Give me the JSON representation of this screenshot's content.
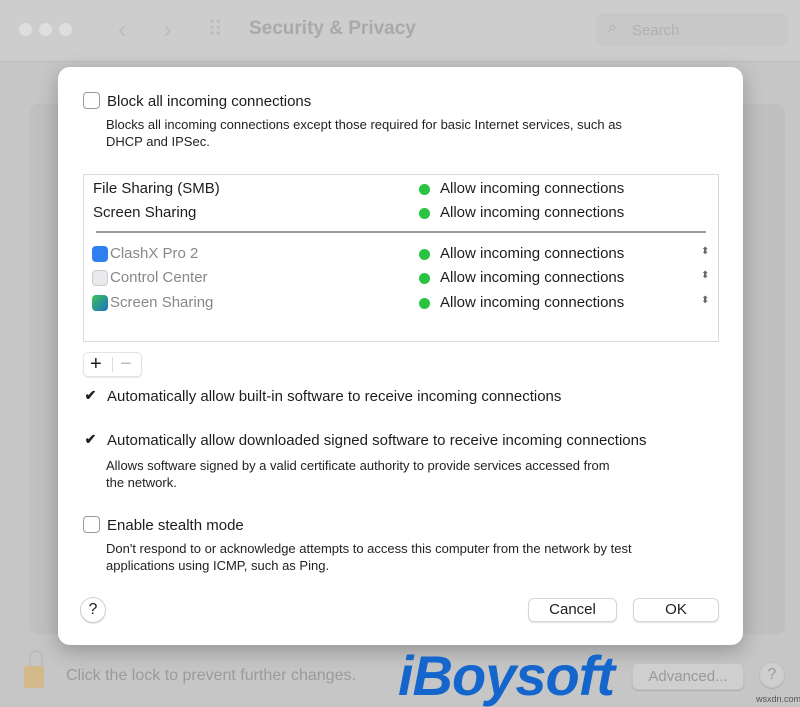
{
  "window": {
    "title": "Security & Privacy",
    "search_placeholder": "Search",
    "back": "‹",
    "forward": "›",
    "grid": "⠿"
  },
  "dialog": {
    "block_all": {
      "label": "Block all incoming connections",
      "checked": false,
      "description_1": "Blocks all incoming connections except those required for basic Internet services, such as",
      "description_2": "DHCP and IPSec."
    },
    "services": [
      {
        "name": "File Sharing (SMB)",
        "status": "Allow incoming connections"
      },
      {
        "name": "Screen Sharing",
        "status": "Allow incoming connections"
      }
    ],
    "apps": [
      {
        "name": "ClashX Pro 2",
        "status": "Allow incoming connections",
        "icon": "clashx-icon"
      },
      {
        "name": "Control Center",
        "status": "Allow incoming connections",
        "icon": "control-center-icon"
      },
      {
        "name": "Screen Sharing",
        "status": "Allow incoming connections",
        "icon": "screen-sharing-icon"
      }
    ],
    "status_color": "#2ac340",
    "add": "+",
    "remove": "−",
    "auto_builtin": {
      "label": "Automatically allow built-in software to receive incoming connections",
      "checked": true
    },
    "auto_signed": {
      "label": "Automatically allow downloaded signed software to receive incoming connections",
      "checked": true,
      "description_1": "Allows software signed by a valid certificate authority to provide services accessed from",
      "description_2": "the network."
    },
    "stealth": {
      "label": "Enable stealth mode",
      "checked": false,
      "description_1": "Don't respond to or acknowledge attempts to access this computer from the network by test",
      "description_2": "applications using ICMP, such as Ping."
    },
    "help": "?",
    "cancel": "Cancel",
    "ok": "OK"
  },
  "footer": {
    "lock_text": "Click the lock to prevent further changes.",
    "advanced": "Advanced...",
    "help": "?"
  },
  "watermark": {
    "logo": "iBoysoft",
    "site": "wsxdn.com"
  }
}
